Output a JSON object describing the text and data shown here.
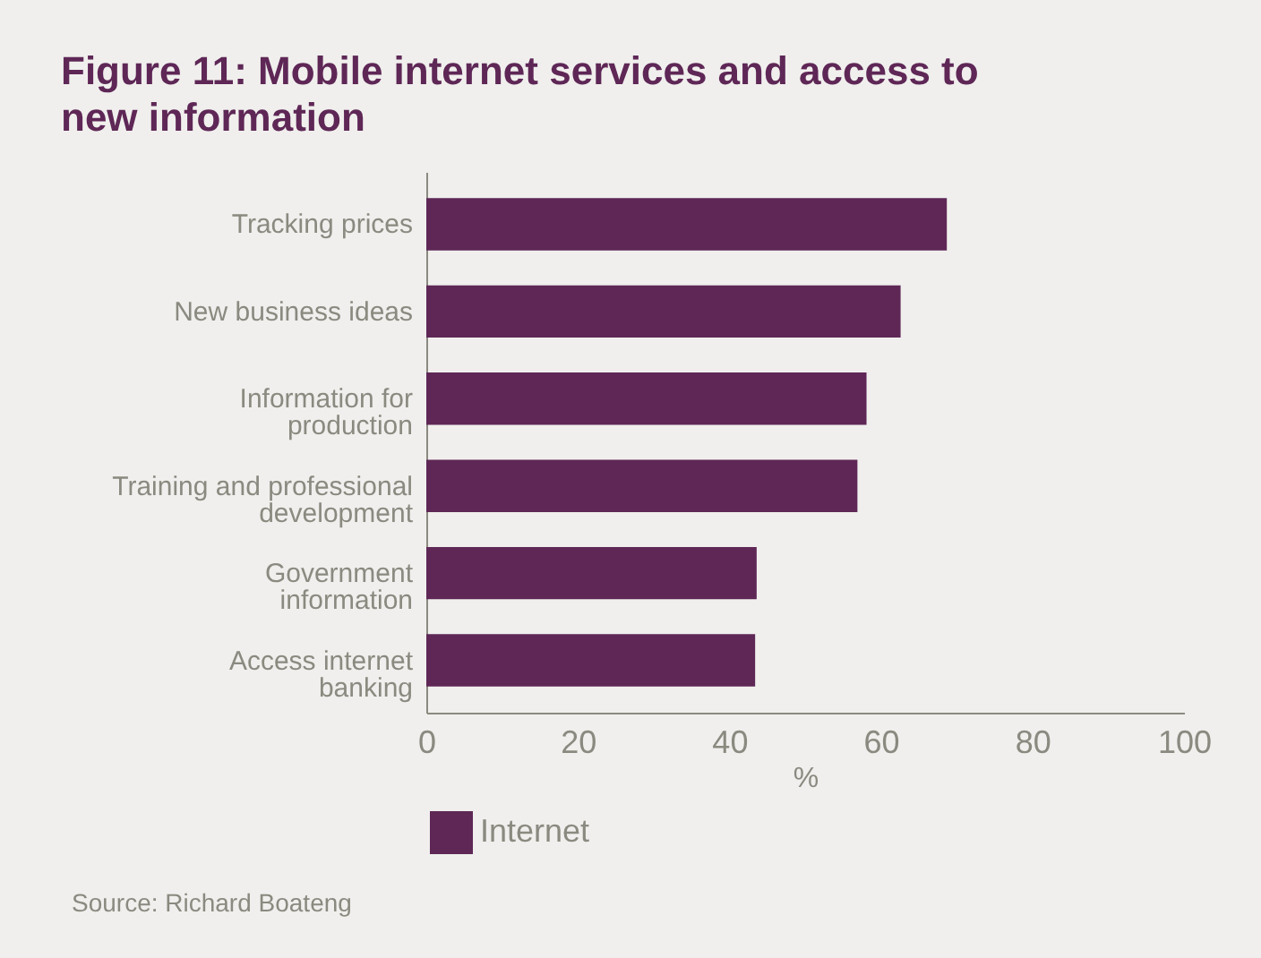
{
  "chart_data": {
    "type": "bar",
    "orientation": "horizontal",
    "title": "Figure 11: Mobile internet services and access to new information",
    "categories": [
      "Tracking prices",
      "New business ideas",
      "Information for production",
      "Training and professional development",
      "Government information",
      "Access internet banking"
    ],
    "series": [
      {
        "name": "Internet",
        "color": "#5e2756",
        "values": [
          68.7,
          62.6,
          58.1,
          56.9,
          43.6,
          43.4
        ]
      }
    ],
    "xlim": [
      0,
      100
    ],
    "xticks": [
      0,
      20,
      40,
      60,
      80,
      100
    ],
    "xlabel": "%",
    "grid": false,
    "legend": "bottom left",
    "annotations": [
      "Source: Richard Boateng"
    ]
  }
}
